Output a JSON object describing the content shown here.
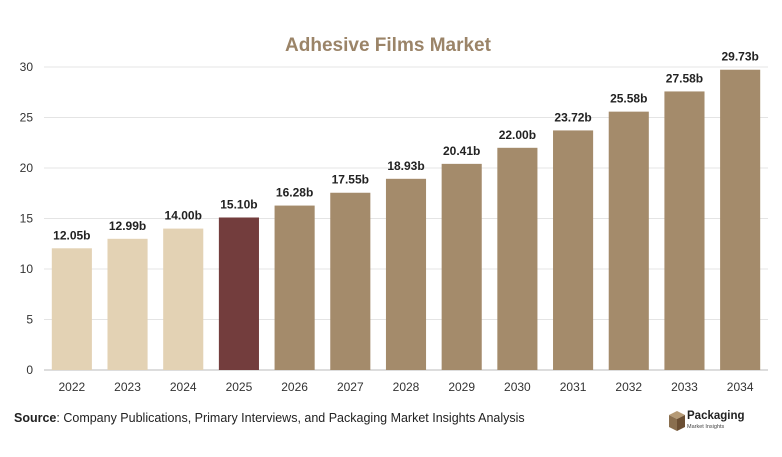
{
  "chart_data": {
    "type": "bar",
    "title": "Adhesive Films Market",
    "categories": [
      "2022",
      "2023",
      "2024",
      "2025",
      "2026",
      "2027",
      "2028",
      "2029",
      "2030",
      "2031",
      "2032",
      "2033",
      "2034"
    ],
    "values": [
      12.05,
      12.99,
      14.0,
      15.1,
      16.28,
      17.55,
      18.93,
      20.41,
      22.0,
      23.72,
      25.58,
      27.58,
      29.73
    ],
    "data_labels": [
      "12.05b",
      "12.99b",
      "14.00b",
      "15.10b",
      "16.28b",
      "17.55b",
      "18.93b",
      "20.41b",
      "22.00b",
      "23.72b",
      "25.58b",
      "27.58b",
      "29.73b"
    ],
    "bar_colors": [
      "#e3d2b4",
      "#e3d2b4",
      "#e3d2b4",
      "#733d3d",
      "#a48b6b",
      "#a48b6b",
      "#a48b6b",
      "#a48b6b",
      "#a48b6b",
      "#a48b6b",
      "#a48b6b",
      "#a48b6b",
      "#a48b6b"
    ],
    "yticks": [
      0,
      5,
      10,
      15,
      20,
      25,
      30
    ],
    "ylim": [
      0,
      30
    ],
    "grid": true,
    "title_color": "#9b8468"
  },
  "source": {
    "label": "Source",
    "text": ": Company Publications, Primary Interviews, and Packaging Market Insights Analysis"
  },
  "logo": {
    "icon": "box-icon",
    "name": "Packaging",
    "subtitle": "Market Insights"
  }
}
